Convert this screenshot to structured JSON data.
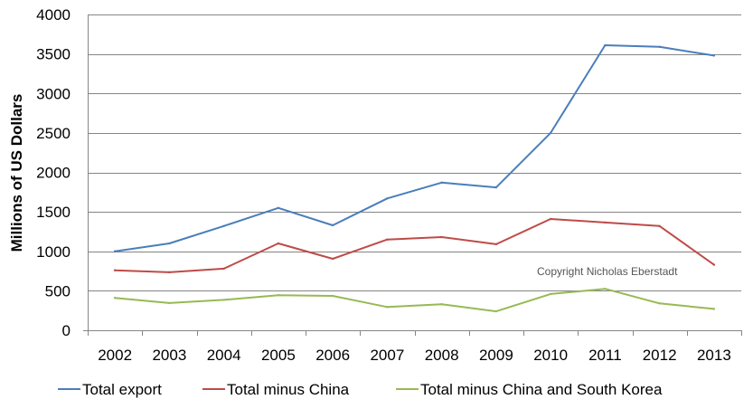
{
  "chart_data": {
    "type": "line",
    "title": "",
    "xlabel": "",
    "ylabel": "Millions of US Dollars",
    "ylim": [
      0,
      4000
    ],
    "yticks": [
      0,
      500,
      1000,
      1500,
      2000,
      2500,
      3000,
      3500,
      4000
    ],
    "ytick_labels": [
      "0",
      "500",
      "1000",
      "1500",
      "2000",
      "2500",
      "3000",
      "3500",
      "4000"
    ],
    "categories": [
      "2002",
      "2003",
      "2004",
      "2005",
      "2006",
      "2007",
      "2008",
      "2009",
      "2010",
      "2011",
      "2012",
      "2013"
    ],
    "grid": "horizontal",
    "legend": "bottom",
    "annotation": "Copyright  Nicholas Eberstadt",
    "series": [
      {
        "name": "Total export",
        "color": "#4a7ebb",
        "values": [
          1000,
          1100,
          1320,
          1550,
          1330,
          1670,
          1870,
          1810,
          2500,
          3610,
          3590,
          3480
        ]
      },
      {
        "name": "Total minus China",
        "color": "#be4b48",
        "values": [
          760,
          735,
          780,
          1100,
          905,
          1150,
          1180,
          1090,
          1410,
          1365,
          1320,
          830
        ]
      },
      {
        "name": "Total minus China and South Korea",
        "color": "#98b954",
        "values": [
          410,
          345,
          385,
          445,
          435,
          295,
          330,
          240,
          460,
          525,
          340,
          270
        ]
      }
    ]
  }
}
